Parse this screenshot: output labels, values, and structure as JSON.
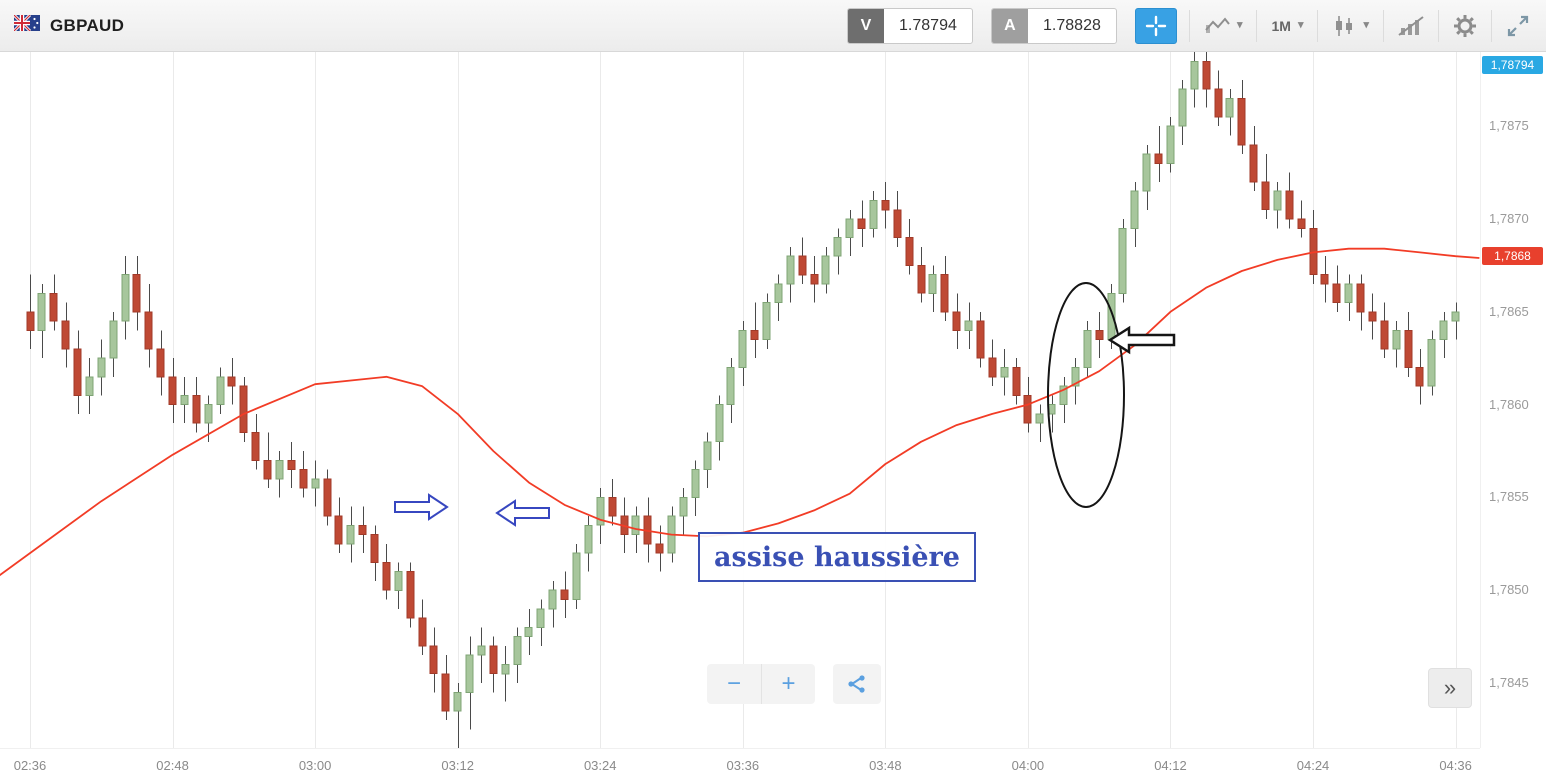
{
  "header": {
    "symbol": "GBPAUD",
    "sell": {
      "label": "V",
      "value": "1.78794"
    },
    "buy": {
      "label": "A",
      "value": "1.78828"
    },
    "timeframe": "1M",
    "icons": [
      "gb-au-flag-icon",
      "crosshair-icon",
      "chart-type-icon",
      "timeframe-dropdown",
      "candlestick-style-icon",
      "indicators-icon",
      "gear-icon",
      "expand-icon"
    ],
    "colors": {
      "crosshair_active": "#38a1e4",
      "sell_square": "#6e6e6e",
      "buy_square": "#9f9f9f"
    }
  },
  "chart_data": {
    "type": "candlestick",
    "title": "GBPAUD 1-minute chart",
    "interval": "1M",
    "grid": "vertical-only",
    "legend_position": "none",
    "x_ticks": [
      "02:36",
      "02:48",
      "03:00",
      "03:12",
      "03:24",
      "03:36",
      "03:48",
      "04:00",
      "04:12",
      "04:24",
      "04:36"
    ],
    "y_tick_texts": [
      "1,7875",
      "1,7870",
      "1,7865",
      "1,7860",
      "1,7855",
      "1,7850",
      "1,7845"
    ],
    "y_tick_values": [
      1.7875,
      1.787,
      1.7865,
      1.786,
      1.7855,
      1.785,
      1.7845
    ],
    "y_domain": [
      1.78415,
      1.7879
    ],
    "minutes_per_candle": 1,
    "badges": {
      "high": {
        "text": "1,78794",
        "value": 1.78794,
        "bg": "#29a8e3"
      },
      "current": {
        "text": "1,7868",
        "value": 1.7868,
        "bg": "#e8402d"
      }
    },
    "colors": {
      "up_fill": "#a7c69c",
      "up_stroke": "#7fa475",
      "down_fill": "#bf4934",
      "down_stroke": "#a03a29",
      "wick": "#4a4a4a",
      "grid": "#eaeaea"
    },
    "ma": {
      "label": "moving-average",
      "color": "#f23c26",
      "points": [
        [
          -3,
          1.78506
        ],
        [
          0,
          1.7852
        ],
        [
          6,
          1.78548
        ],
        [
          12,
          1.78573
        ],
        [
          18,
          1.78595
        ],
        [
          24,
          1.78611
        ],
        [
          30,
          1.78615
        ],
        [
          33,
          1.7861
        ],
        [
          36,
          1.78595
        ],
        [
          39,
          1.78575
        ],
        [
          42,
          1.78558
        ],
        [
          45,
          1.78546
        ],
        [
          48,
          1.78538
        ],
        [
          51,
          1.78533
        ],
        [
          54,
          1.7853
        ],
        [
          57,
          1.78529
        ],
        [
          60,
          1.78531
        ],
        [
          63,
          1.78536
        ],
        [
          66,
          1.78543
        ],
        [
          69,
          1.78552
        ],
        [
          72,
          1.78568
        ],
        [
          75,
          1.7858
        ],
        [
          78,
          1.78589
        ],
        [
          81,
          1.78595
        ],
        [
          84,
          1.786
        ],
        [
          87,
          1.78608
        ],
        [
          90,
          1.78618
        ],
        [
          93,
          1.78632
        ],
        [
          96,
          1.7865
        ],
        [
          99,
          1.78663
        ],
        [
          102,
          1.78672
        ],
        [
          105,
          1.78678
        ],
        [
          108,
          1.78682
        ],
        [
          111,
          1.78684
        ],
        [
          114,
          1.78684
        ],
        [
          117,
          1.78682
        ],
        [
          120,
          1.7868
        ],
        [
          122,
          1.78679
        ]
      ]
    },
    "candles": [
      [
        1.7865,
        1.7867,
        1.7863,
        1.7864
      ],
      [
        1.7864,
        1.78665,
        1.78625,
        1.7866
      ],
      [
        1.7866,
        1.7867,
        1.7864,
        1.78645
      ],
      [
        1.78645,
        1.78655,
        1.7862,
        1.7863
      ],
      [
        1.7863,
        1.7864,
        1.78595,
        1.78605
      ],
      [
        1.78605,
        1.78625,
        1.78595,
        1.78615
      ],
      [
        1.78615,
        1.78635,
        1.78605,
        1.78625
      ],
      [
        1.78625,
        1.7865,
        1.78615,
        1.78645
      ],
      [
        1.78645,
        1.7868,
        1.78635,
        1.7867
      ],
      [
        1.7867,
        1.7868,
        1.7864,
        1.7865
      ],
      [
        1.7865,
        1.78665,
        1.7862,
        1.7863
      ],
      [
        1.7863,
        1.7864,
        1.78605,
        1.78615
      ],
      [
        1.78615,
        1.78625,
        1.7859,
        1.786
      ],
      [
        1.786,
        1.78615,
        1.7859,
        1.78605
      ],
      [
        1.78605,
        1.78615,
        1.78585,
        1.7859
      ],
      [
        1.7859,
        1.78605,
        1.7858,
        1.786
      ],
      [
        1.786,
        1.7862,
        1.78595,
        1.78615
      ],
      [
        1.78615,
        1.78625,
        1.786,
        1.7861
      ],
      [
        1.7861,
        1.78615,
        1.7858,
        1.78585
      ],
      [
        1.78585,
        1.78595,
        1.78565,
        1.7857
      ],
      [
        1.7857,
        1.78585,
        1.78555,
        1.7856
      ],
      [
        1.7856,
        1.78575,
        1.7855,
        1.7857
      ],
      [
        1.7857,
        1.7858,
        1.78555,
        1.78565
      ],
      [
        1.78565,
        1.78575,
        1.7855,
        1.78555
      ],
      [
        1.78555,
        1.7857,
        1.78545,
        1.7856
      ],
      [
        1.7856,
        1.78565,
        1.78535,
        1.7854
      ],
      [
        1.7854,
        1.7855,
        1.7852,
        1.78525
      ],
      [
        1.78525,
        1.78545,
        1.78515,
        1.78535
      ],
      [
        1.78535,
        1.78545,
        1.7852,
        1.7853
      ],
      [
        1.7853,
        1.78535,
        1.78505,
        1.78515
      ],
      [
        1.78515,
        1.78525,
        1.78495,
        1.785
      ],
      [
        1.785,
        1.78515,
        1.7849,
        1.7851
      ],
      [
        1.7851,
        1.78515,
        1.7848,
        1.78485
      ],
      [
        1.78485,
        1.78495,
        1.78465,
        1.7847
      ],
      [
        1.7847,
        1.7848,
        1.78445,
        1.78455
      ],
      [
        1.78455,
        1.78465,
        1.7843,
        1.78435
      ],
      [
        1.78435,
        1.7845,
        1.78415,
        1.78445
      ],
      [
        1.78445,
        1.78475,
        1.78425,
        1.78465
      ],
      [
        1.78465,
        1.7848,
        1.7845,
        1.7847
      ],
      [
        1.7847,
        1.78475,
        1.78445,
        1.78455
      ],
      [
        1.78455,
        1.7847,
        1.7844,
        1.7846
      ],
      [
        1.7846,
        1.7848,
        1.7845,
        1.78475
      ],
      [
        1.78475,
        1.7849,
        1.78465,
        1.7848
      ],
      [
        1.7848,
        1.78495,
        1.7847,
        1.7849
      ],
      [
        1.7849,
        1.78505,
        1.7848,
        1.785
      ],
      [
        1.785,
        1.7851,
        1.78485,
        1.78495
      ],
      [
        1.78495,
        1.78525,
        1.7849,
        1.7852
      ],
      [
        1.7852,
        1.7854,
        1.7851,
        1.78535
      ],
      [
        1.78535,
        1.78555,
        1.78525,
        1.7855
      ],
      [
        1.7855,
        1.7856,
        1.78535,
        1.7854
      ],
      [
        1.7854,
        1.7855,
        1.7852,
        1.7853
      ],
      [
        1.7853,
        1.78545,
        1.7852,
        1.7854
      ],
      [
        1.7854,
        1.7855,
        1.78515,
        1.78525
      ],
      [
        1.78525,
        1.78535,
        1.7851,
        1.7852
      ],
      [
        1.7852,
        1.78545,
        1.78515,
        1.7854
      ],
      [
        1.7854,
        1.78555,
        1.7853,
        1.7855
      ],
      [
        1.7855,
        1.7857,
        1.7854,
        1.78565
      ],
      [
        1.78565,
        1.78585,
        1.78555,
        1.7858
      ],
      [
        1.7858,
        1.78605,
        1.7857,
        1.786
      ],
      [
        1.786,
        1.78625,
        1.7859,
        1.7862
      ],
      [
        1.7862,
        1.78645,
        1.7861,
        1.7864
      ],
      [
        1.7864,
        1.78655,
        1.78625,
        1.78635
      ],
      [
        1.78635,
        1.7866,
        1.7863,
        1.78655
      ],
      [
        1.78655,
        1.7867,
        1.78645,
        1.78665
      ],
      [
        1.78665,
        1.78685,
        1.78655,
        1.7868
      ],
      [
        1.7868,
        1.7869,
        1.78665,
        1.7867
      ],
      [
        1.7867,
        1.7868,
        1.78655,
        1.78665
      ],
      [
        1.78665,
        1.78685,
        1.7866,
        1.7868
      ],
      [
        1.7868,
        1.78695,
        1.7867,
        1.7869
      ],
      [
        1.7869,
        1.78705,
        1.7868,
        1.787
      ],
      [
        1.787,
        1.7871,
        1.78685,
        1.78695
      ],
      [
        1.78695,
        1.78715,
        1.7869,
        1.7871
      ],
      [
        1.7871,
        1.7872,
        1.78695,
        1.78705
      ],
      [
        1.78705,
        1.78715,
        1.78685,
        1.7869
      ],
      [
        1.7869,
        1.787,
        1.7867,
        1.78675
      ],
      [
        1.78675,
        1.78685,
        1.78655,
        1.7866
      ],
      [
        1.7866,
        1.78675,
        1.7865,
        1.7867
      ],
      [
        1.7867,
        1.7868,
        1.78645,
        1.7865
      ],
      [
        1.7865,
        1.7866,
        1.7863,
        1.7864
      ],
      [
        1.7864,
        1.78655,
        1.7863,
        1.78645
      ],
      [
        1.78645,
        1.7865,
        1.7862,
        1.78625
      ],
      [
        1.78625,
        1.78635,
        1.7861,
        1.78615
      ],
      [
        1.78615,
        1.7863,
        1.78605,
        1.7862
      ],
      [
        1.7862,
        1.78625,
        1.786,
        1.78605
      ],
      [
        1.78605,
        1.78615,
        1.78585,
        1.7859
      ],
      [
        1.7859,
        1.786,
        1.7858,
        1.78595
      ],
      [
        1.78595,
        1.78605,
        1.78585,
        1.786
      ],
      [
        1.786,
        1.78615,
        1.7859,
        1.7861
      ],
      [
        1.7861,
        1.78625,
        1.786,
        1.7862
      ],
      [
        1.7862,
        1.78645,
        1.78615,
        1.7864
      ],
      [
        1.7864,
        1.7865,
        1.78625,
        1.78635
      ],
      [
        1.78635,
        1.78665,
        1.7863,
        1.7866
      ],
      [
        1.7866,
        1.787,
        1.78655,
        1.78695
      ],
      [
        1.78695,
        1.7872,
        1.78685,
        1.78715
      ],
      [
        1.78715,
        1.7874,
        1.78705,
        1.78735
      ],
      [
        1.78735,
        1.7875,
        1.7872,
        1.7873
      ],
      [
        1.7873,
        1.78755,
        1.78725,
        1.7875
      ],
      [
        1.7875,
        1.78775,
        1.7874,
        1.7877
      ],
      [
        1.7877,
        1.78794,
        1.7876,
        1.78785
      ],
      [
        1.78785,
        1.7879,
        1.7876,
        1.7877
      ],
      [
        1.7877,
        1.7878,
        1.7875,
        1.78755
      ],
      [
        1.78755,
        1.7877,
        1.78745,
        1.78765
      ],
      [
        1.78765,
        1.78775,
        1.78735,
        1.7874
      ],
      [
        1.7874,
        1.7875,
        1.78715,
        1.7872
      ],
      [
        1.7872,
        1.78735,
        1.787,
        1.78705
      ],
      [
        1.78705,
        1.7872,
        1.78695,
        1.78715
      ],
      [
        1.78715,
        1.78725,
        1.78695,
        1.787
      ],
      [
        1.787,
        1.7871,
        1.7869,
        1.78695
      ],
      [
        1.78695,
        1.78705,
        1.78665,
        1.7867
      ],
      [
        1.7867,
        1.7868,
        1.78655,
        1.78665
      ],
      [
        1.78665,
        1.78675,
        1.7865,
        1.78655
      ],
      [
        1.78655,
        1.7867,
        1.78645,
        1.78665
      ],
      [
        1.78665,
        1.7867,
        1.7864,
        1.7865
      ],
      [
        1.7865,
        1.7866,
        1.78635,
        1.78645
      ],
      [
        1.78645,
        1.78655,
        1.78625,
        1.7863
      ],
      [
        1.7863,
        1.78645,
        1.7862,
        1.7864
      ],
      [
        1.7864,
        1.7865,
        1.78615,
        1.7862
      ],
      [
        1.7862,
        1.7863,
        1.786,
        1.7861
      ],
      [
        1.7861,
        1.7864,
        1.78605,
        1.78635
      ],
      [
        1.78635,
        1.7865,
        1.78625,
        1.78645
      ],
      [
        1.78645,
        1.78655,
        1.78635,
        1.7865
      ]
    ]
  },
  "annotations": {
    "text_label": "assise haussière",
    "label_color": "#3a50b4",
    "shapes": [
      "blue-arrow-right",
      "blue-arrow-left",
      "highlight-ellipse",
      "black-arrow-left"
    ]
  },
  "controls": {
    "zoom_out": "−",
    "zoom_in": "+",
    "expand_panel": "»"
  }
}
